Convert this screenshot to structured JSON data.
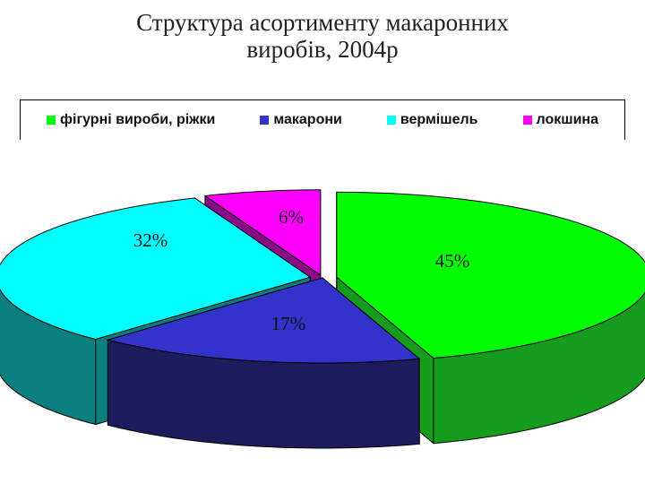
{
  "title_lines": [
    "Структура асортименту макаронних",
    "виробів, 2004р"
  ],
  "chart_data": {
    "type": "pie",
    "title": "Структура асортименту макаронних виробів, 2004р",
    "categories": [
      "фігурні вироби, ріжки",
      "макарони",
      "вермішель",
      "локшина"
    ],
    "values": [
      45,
      17,
      32,
      6
    ],
    "labels": [
      "45%",
      "17%",
      "32%",
      "6%"
    ],
    "colors": [
      "#00ff00",
      "#3333cc",
      "#00ffff",
      "#ff00ff"
    ],
    "side_colors": [
      "#169c1c",
      "#1c1c5c",
      "#0a7f80",
      "#8a0a8a"
    ],
    "legend_position": "top",
    "three_d": true
  }
}
